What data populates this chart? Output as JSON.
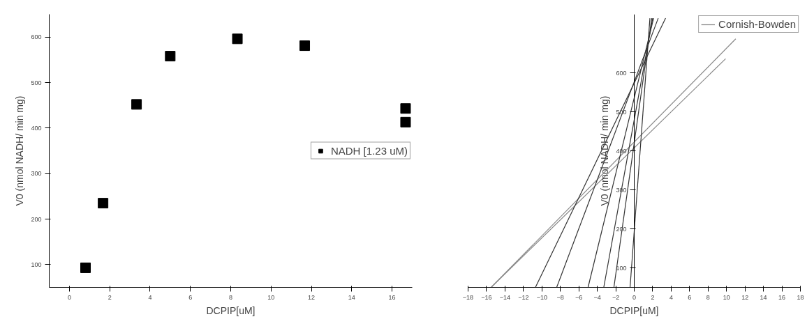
{
  "chart_data": [
    {
      "type": "scatter",
      "xlabel": "DCPIP[uM]",
      "ylabel": "V0 (nmol NADH/ min mg)",
      "marker": "square",
      "grid": false,
      "legend": "right",
      "xlim": [
        -1,
        17
      ],
      "ylim": [
        50,
        650
      ],
      "xticks": [
        0,
        2,
        4,
        6,
        8,
        10,
        12,
        14,
        16
      ],
      "yticks": [
        100,
        200,
        300,
        400,
        500,
        600
      ],
      "series": [
        {
          "name": "NADH [1.23 uM)",
          "color": "#000000",
          "x": [
            0.8,
            1.67,
            3.33,
            5,
            8.33,
            11.67,
            16.67,
            16.67
          ],
          "values": [
            93,
            235,
            452,
            558,
            596,
            581,
            443,
            413
          ]
        }
      ]
    },
    {
      "type": "line",
      "xlabel": "DCPIP[uM]",
      "ylabel": "V0 (nmol NADH/ min mg)",
      "marker": "none",
      "grid": false,
      "legend": "top right",
      "xlim": [
        -18,
        18
      ],
      "ylim": [
        50,
        750
      ],
      "xticks": [
        -18,
        -16,
        -14,
        -12,
        -10,
        -8,
        -6,
        -4,
        -2,
        0,
        2,
        4,
        6,
        8,
        10,
        12,
        14,
        16,
        18
      ],
      "yticks": [
        100,
        200,
        300,
        400,
        500,
        600
      ],
      "series": [
        {
          "name": "Cornish-Bowden",
          "color": "#888888",
          "x": [
            -15.5,
            11.0
          ],
          "values": [
            50,
            687
          ]
        },
        {
          "color": "#888888",
          "x": [
            -15.5,
            9.9
          ],
          "values": [
            50,
            636
          ]
        },
        {
          "color": "#333333",
          "x": [
            -10.7,
            3.4
          ],
          "values": [
            50,
            740
          ]
        },
        {
          "color": "#333333",
          "x": [
            -8.4,
            2.6
          ],
          "values": [
            50,
            740
          ]
        },
        {
          "color": "#333333",
          "x": [
            -5.0,
            2.1
          ],
          "values": [
            50,
            740
          ]
        },
        {
          "color": "#333333",
          "x": [
            -3.3,
            2.0
          ],
          "values": [
            50,
            740
          ]
        },
        {
          "color": "#333333",
          "x": [
            -2.2,
            1.9
          ],
          "values": [
            50,
            740
          ]
        },
        {
          "color": "#333333",
          "x": [
            -0.45,
            1.7
          ],
          "values": [
            50,
            740
          ]
        }
      ]
    }
  ]
}
